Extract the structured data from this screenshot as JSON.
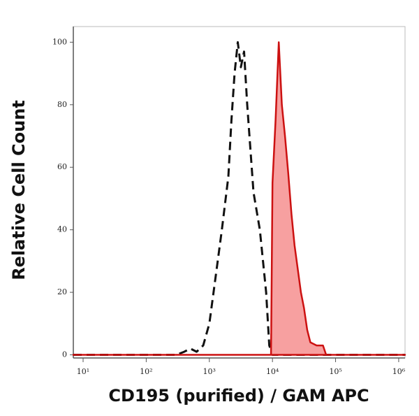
{
  "chart_data": {
    "type": "histogram-overlay",
    "x_label": "CD195 (purified) / GAM APC",
    "y_label": "Relative Cell Count",
    "x_log": true,
    "xlim": [
      7,
      1260000
    ],
    "xticks": [
      {
        "value": 10,
        "label": "10¹"
      },
      {
        "value": 100,
        "label": "10²"
      },
      {
        "value": 1000,
        "label": "10³"
      },
      {
        "value": 10000,
        "label": "10⁴"
      },
      {
        "value": 100000,
        "label": "10⁵"
      },
      {
        "value": 1000000,
        "label": "10⁶"
      }
    ],
    "ylim": [
      -1,
      105
    ],
    "yticks": [
      0,
      20,
      40,
      60,
      80,
      100
    ],
    "series": [
      {
        "color": "#111111",
        "dashed": true,
        "filled": false,
        "x": [
          7,
          300,
          400,
          500,
          630,
          800,
          1000,
          1260,
          1580,
          2000,
          2240,
          2510,
          2820,
          3160,
          3550,
          3980,
          5010,
          6310,
          7940,
          8910,
          10000,
          1260000
        ],
        "values": [
          0,
          0,
          1,
          2,
          1,
          3,
          10,
          25,
          40,
          57,
          75,
          90,
          100,
          92,
          97,
          80,
          52,
          40,
          20,
          3,
          0,
          0
        ]
      },
      {
        "color": "#cc1111",
        "dashed": false,
        "filled": true,
        "fill_color": "#f7a0a0",
        "x": [
          7,
          9500,
          10000,
          11200,
          12600,
          14100,
          15800,
          17800,
          20000,
          22400,
          28200,
          31600,
          35500,
          39800,
          50100,
          63100,
          70800,
          1260000
        ],
        "values": [
          0,
          0,
          55,
          75,
          100,
          80,
          70,
          58,
          45,
          35,
          20,
          15,
          8,
          4,
          3,
          3,
          0,
          0
        ]
      }
    ]
  }
}
